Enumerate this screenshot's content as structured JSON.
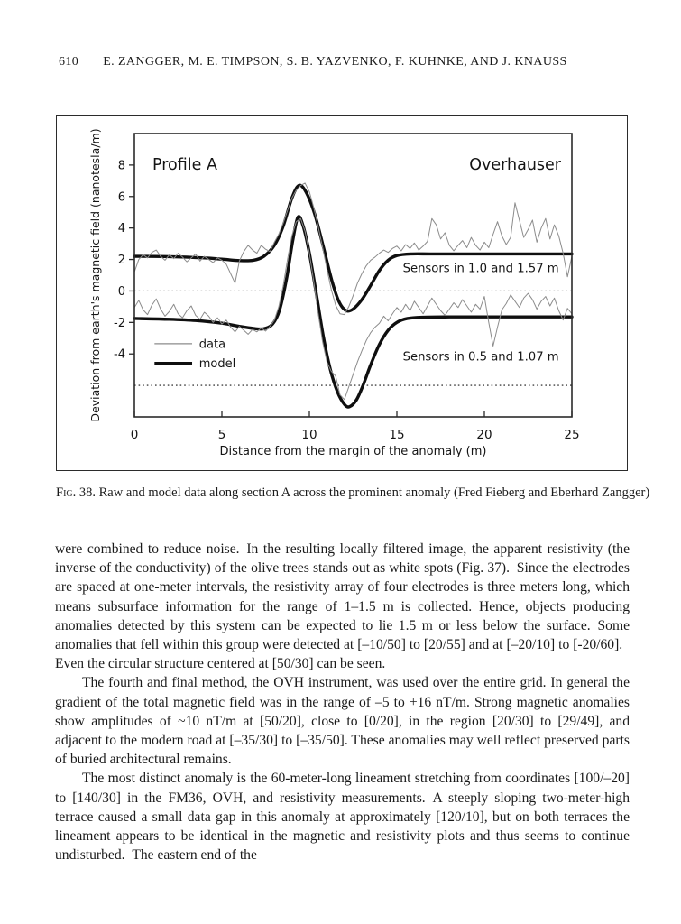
{
  "header": {
    "page_number": "610",
    "authors": "E. ZANGGER, M. E. TIMPSON, S. B. YAZVENKO, F. KUHNKE, AND J. KNAUSS"
  },
  "caption": {
    "label": "Fig. 38.",
    "text": "Raw and model data along section A across the prominent anomaly (Fred Fieberg and Eberhard Zangger)"
  },
  "paragraphs": [
    {
      "text": "were combined to reduce noise. In the resulting locally filtered image, the apparent resistivity (the inverse of the conductivity) of the olive trees stands out as white spots (Fig. 37). Since the electrodes are spaced at one-meter intervals, the resistivity array of four electrodes is three meters long, which means subsurface information for the range of 1–1.5 m is collected. Hence, objects producing anomalies detected by this system can be expected to lie 1.5 m or less below the surface. Some anomalies that fell within this group were detected at [–10/50] to [20/55] and at [–20/10] to [-20/60]. Even the circular structure centered at [50/30] can be seen."
    },
    {
      "text": "The fourth and final method, the OVH instrument, was used over the entire grid. In general the gradient of the total magnetic field was in the range of –5 to +16 nT/m. Strong magnetic anomalies show amplitudes of ~10 nT/m at [50/20], close to [0/20], in the region [20/30] to [29/49], and adjacent to the modern road at [–35/30] to [–35/50]. These anomalies may well reflect preserved parts of buried architectural remains."
    },
    {
      "text": "The most distinct anomaly is the 60-meter-long lineament stretching from coordinates [100/–20] to [140/30] in the FM36, OVH, and resistivity measurements. A steeply sloping two-meter-high terrace caused a small data gap in this anomaly at approximately [120/10], but on both terraces the lineament appears to be identical in the magnetic and resistivity plots and thus seems to continue undisturbed. The eastern end of the"
    }
  ],
  "chart_data": {
    "type": "line",
    "title_left": "Profile A",
    "title_right": "Overhauser",
    "xlabel": "Distance from the margin of the anomaly (m)",
    "ylabel": "Deviation from earth's magnetic field (nanotesla/m)",
    "xlim": [
      0,
      25
    ],
    "ylim": [
      -8,
      10
    ],
    "xticks": [
      0,
      5,
      10,
      15,
      20,
      25
    ],
    "yticks": [
      8,
      6,
      4,
      2,
      0,
      -2,
      -4
    ],
    "dotted_lines_y": [
      0,
      -6
    ],
    "grid": "dotted-zero-lines-only",
    "legend_position": "lower-left-inside",
    "colors": {
      "data": "#8c8c8c",
      "model": "#0f0f0f",
      "frame": "#2b2b2b"
    },
    "annotations": [
      {
        "text": "Sensors in 1.0 and 1.57 m",
        "x": 19.8,
        "y": 1.45
      },
      {
        "text": "Sensors in 0.5 and 1.07 m",
        "x": 19.8,
        "y": -4.15
      }
    ],
    "legend": {
      "x_line": [
        1.15,
        3.3
      ],
      "x_text": 3.7,
      "items": [
        {
          "label": "data",
          "style": "thin",
          "y": -3.35
        },
        {
          "label": "model",
          "style": "thick",
          "y": -4.6
        }
      ]
    },
    "series": [
      {
        "name": "model_upper",
        "kind": "model",
        "points": [
          [
            0,
            2.2
          ],
          [
            2,
            2.18
          ],
          [
            4,
            2.1
          ],
          [
            5,
            2.02
          ],
          [
            6,
            1.93
          ],
          [
            6.8,
            1.95
          ],
          [
            7.4,
            2.2
          ],
          [
            8,
            2.9
          ],
          [
            8.5,
            4.1
          ],
          [
            9,
            5.9
          ],
          [
            9.4,
            6.7
          ],
          [
            9.8,
            6.3
          ],
          [
            10.3,
            4.9
          ],
          [
            10.8,
            2.8
          ],
          [
            11.3,
            0.6
          ],
          [
            11.7,
            -0.7
          ],
          [
            12.1,
            -1.25
          ],
          [
            12.5,
            -1.15
          ],
          [
            13,
            -0.55
          ],
          [
            13.5,
            0.35
          ],
          [
            14,
            1.3
          ],
          [
            14.5,
            1.95
          ],
          [
            15,
            2.25
          ],
          [
            15.8,
            2.35
          ],
          [
            17,
            2.35
          ],
          [
            19,
            2.35
          ],
          [
            21,
            2.35
          ],
          [
            23,
            2.35
          ],
          [
            25,
            2.35
          ]
        ]
      },
      {
        "name": "model_lower",
        "kind": "model",
        "points": [
          [
            0,
            -1.75
          ],
          [
            2,
            -1.8
          ],
          [
            3.5,
            -1.88
          ],
          [
            5,
            -2.05
          ],
          [
            6,
            -2.25
          ],
          [
            6.8,
            -2.38
          ],
          [
            7.4,
            -2.4
          ],
          [
            7.9,
            -2.1
          ],
          [
            8.3,
            -1.2
          ],
          [
            8.7,
            0.8
          ],
          [
            9.05,
            3.2
          ],
          [
            9.35,
            4.7
          ],
          [
            9.65,
            4.1
          ],
          [
            10,
            2.4
          ],
          [
            10.4,
            -0.2
          ],
          [
            10.8,
            -2.9
          ],
          [
            11.2,
            -5.0
          ],
          [
            11.6,
            -6.4
          ],
          [
            12,
            -7.2
          ],
          [
            12.3,
            -7.35
          ],
          [
            12.7,
            -6.9
          ],
          [
            13.1,
            -5.9
          ],
          [
            13.5,
            -4.7
          ],
          [
            14,
            -3.4
          ],
          [
            14.5,
            -2.5
          ],
          [
            15,
            -2.0
          ],
          [
            15.6,
            -1.75
          ],
          [
            16.5,
            -1.67
          ],
          [
            18,
            -1.65
          ],
          [
            20,
            -1.65
          ],
          [
            22,
            -1.65
          ],
          [
            25,
            -1.65
          ]
        ]
      },
      {
        "name": "data_upper",
        "kind": "data",
        "x0": 0,
        "dx": 0.25,
        "y": [
          1.2,
          2.0,
          2.3,
          2.1,
          2.45,
          2.6,
          2.2,
          1.95,
          2.3,
          2.05,
          2.4,
          2.15,
          1.85,
          2.1,
          2.35,
          1.9,
          2.2,
          2.0,
          1.8,
          2.1,
          1.95,
          1.7,
          1.1,
          0.5,
          1.9,
          2.5,
          2.9,
          2.6,
          2.4,
          2.9,
          2.65,
          2.5,
          3.1,
          3.6,
          4.3,
          5.1,
          5.9,
          6.4,
          6.7,
          6.85,
          6.3,
          5.3,
          4.1,
          2.8,
          1.4,
          0.1,
          -0.9,
          -1.45,
          -1.5,
          -1.0,
          -0.3,
          0.5,
          1.1,
          1.6,
          1.95,
          2.15,
          2.4,
          2.6,
          2.45,
          2.7,
          2.85,
          2.55,
          2.95,
          2.7,
          3.05,
          2.6,
          2.85,
          3.15,
          4.6,
          4.2,
          3.3,
          3.7,
          2.9,
          2.55,
          2.9,
          3.2,
          2.75,
          3.4,
          2.9,
          2.6,
          3.1,
          2.75,
          3.6,
          4.4,
          3.5,
          2.95,
          3.4,
          5.6,
          4.5,
          3.4,
          3.9,
          4.5,
          3.1,
          4.0,
          4.6,
          3.3,
          4.2,
          3.5,
          2.4,
          0.9,
          2.2
        ]
      },
      {
        "name": "data_lower",
        "kind": "data",
        "x0": 0,
        "dx": 0.25,
        "y": [
          -1.05,
          -0.6,
          -1.2,
          -1.5,
          -0.9,
          -0.5,
          -1.15,
          -1.6,
          -1.3,
          -0.85,
          -1.45,
          -1.7,
          -1.25,
          -0.95,
          -1.55,
          -1.8,
          -1.35,
          -1.6,
          -2.0,
          -1.7,
          -2.1,
          -1.85,
          -2.3,
          -2.6,
          -2.25,
          -2.5,
          -2.75,
          -2.45,
          -2.6,
          -2.35,
          -2.55,
          -2.25,
          -1.85,
          -1.0,
          0.3,
          2.0,
          3.5,
          4.4,
          4.6,
          3.8,
          2.4,
          0.6,
          -1.4,
          -3.2,
          -4.5,
          -5.1,
          -5.4,
          -6.6,
          -6.9,
          -6.1,
          -5.3,
          -4.5,
          -3.8,
          -3.15,
          -2.65,
          -2.3,
          -2.05,
          -1.6,
          -1.9,
          -1.45,
          -1.05,
          -1.35,
          -0.85,
          -1.25,
          -0.65,
          -1.05,
          -1.45,
          -0.95,
          -0.45,
          -0.85,
          -1.25,
          -1.55,
          -1.15,
          -0.75,
          -1.05,
          -0.55,
          -0.95,
          -1.35,
          -0.85,
          -1.15,
          -0.35,
          -2.0,
          -3.5,
          -2.3,
          -1.2,
          -0.8,
          -0.25,
          -0.65,
          -1.05,
          -0.45,
          -0.15,
          -0.55,
          -1.15,
          -0.65,
          -0.35,
          -0.95,
          -0.45,
          -1.25,
          -1.85,
          -1.1,
          -1.45
        ]
      }
    ]
  }
}
